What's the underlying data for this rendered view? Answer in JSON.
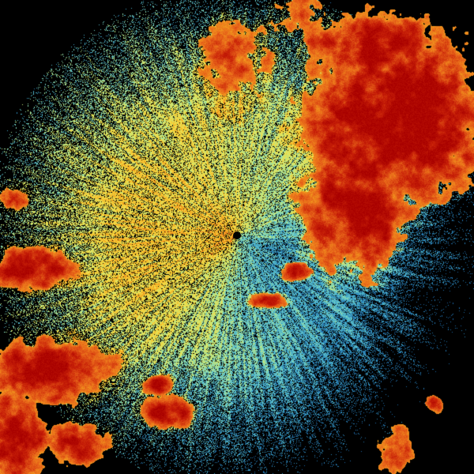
{
  "radar": {
    "background_color": "#000000",
    "palette": [
      "#1a5f9e",
      "#3aa0c8",
      "#6fd0c8",
      "#bfe880",
      "#f2e24a",
      "#f5b020",
      "#e8661a",
      "#c82008",
      "#a80000"
    ],
    "site_marker_color": "#000000"
  }
}
